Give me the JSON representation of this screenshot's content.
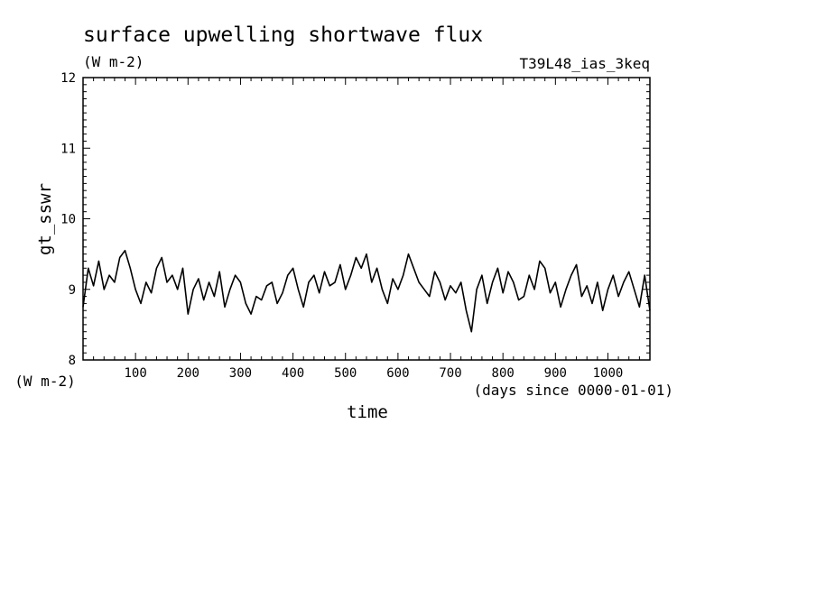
{
  "chart_data": {
    "type": "line",
    "title": "surface upwelling shortwave flux",
    "units": "(W m-2)",
    "run_label": "T39L48_ias_3keq",
    "ylabel": "gt_sswr",
    "ylabel_units": "(W m-2)",
    "xlabel": "time",
    "xlabel_units": "(days since 0000-01-01)",
    "xlim": [
      0,
      1080
    ],
    "ylim": [
      8,
      12
    ],
    "x_ticks": [
      100,
      200,
      300,
      400,
      500,
      600,
      700,
      800,
      900,
      1000
    ],
    "y_ticks": [
      8,
      9,
      10,
      11,
      12
    ],
    "x_tick_labels": [
      "100",
      "200",
      "300",
      "400",
      "500",
      "600",
      "700",
      "800",
      "900",
      "1000"
    ],
    "y_tick_labels": [
      "8",
      "9",
      "10",
      "11",
      "12"
    ],
    "grid": false,
    "legend": "none",
    "series": [
      {
        "x": [
          0,
          10,
          20,
          30,
          40,
          50,
          60,
          70,
          80,
          90,
          100,
          110,
          120,
          130,
          140,
          150,
          160,
          170,
          180,
          190,
          200,
          210,
          220,
          230,
          240,
          250,
          260,
          270,
          280,
          290,
          300,
          310,
          320,
          330,
          340,
          350,
          360,
          370,
          380,
          390,
          400,
          410,
          420,
          430,
          440,
          450,
          460,
          470,
          480,
          490,
          500,
          510,
          520,
          530,
          540,
          550,
          560,
          570,
          580,
          590,
          600,
          610,
          620,
          630,
          640,
          650,
          660,
          670,
          680,
          690,
          700,
          710,
          720,
          730,
          740,
          750,
          760,
          770,
          780,
          790,
          800,
          810,
          820,
          830,
          840,
          850,
          860,
          870,
          880,
          890,
          900,
          910,
          920,
          930,
          940,
          950,
          960,
          970,
          980,
          990,
          1000,
          1010,
          1020,
          1030,
          1040,
          1050,
          1060,
          1070,
          1080
        ],
        "values": [
          8.75,
          9.3,
          9.05,
          9.4,
          9.0,
          9.2,
          9.1,
          9.45,
          9.55,
          9.3,
          9.0,
          8.8,
          9.1,
          8.95,
          9.3,
          9.45,
          9.1,
          9.2,
          9.0,
          9.3,
          8.65,
          9.0,
          9.15,
          8.85,
          9.1,
          8.9,
          9.25,
          8.75,
          9.0,
          9.2,
          9.1,
          8.8,
          8.65,
          8.9,
          8.85,
          9.05,
          9.1,
          8.8,
          8.95,
          9.2,
          9.3,
          9.0,
          8.75,
          9.1,
          9.2,
          8.95,
          9.25,
          9.05,
          9.1,
          9.35,
          9.0,
          9.2,
          9.45,
          9.3,
          9.5,
          9.1,
          9.3,
          9.0,
          8.8,
          9.15,
          9.0,
          9.2,
          9.5,
          9.3,
          9.1,
          9.0,
          8.9,
          9.25,
          9.1,
          8.85,
          9.05,
          8.95,
          9.1,
          8.7,
          8.4,
          9.0,
          9.2,
          8.8,
          9.1,
          9.3,
          8.95,
          9.25,
          9.1,
          8.85,
          8.9,
          9.2,
          9.0,
          9.4,
          9.3,
          8.95,
          9.1,
          8.75,
          9.0,
          9.2,
          9.35,
          8.9,
          9.05,
          8.8,
          9.1,
          8.7,
          9.0,
          9.2,
          8.9,
          9.1,
          9.25,
          9.0,
          8.75,
          9.2,
          8.7
        ]
      }
    ]
  }
}
